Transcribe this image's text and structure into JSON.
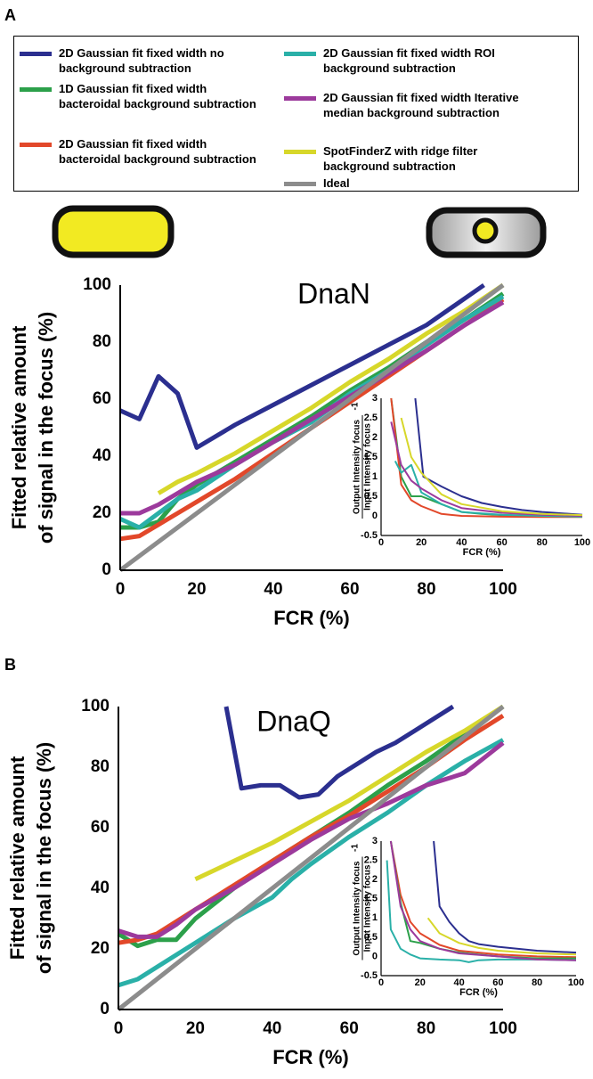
{
  "panel_labels": [
    "A",
    "B"
  ],
  "chart_data": [
    {
      "type": "line",
      "title": "DnaN",
      "xlabel": "FCR (%)",
      "ylabel": [
        "Fitted relative amount",
        "of signal in the focus (%)"
      ],
      "xlim": [
        0,
        100
      ],
      "ylim": [
        0,
        100
      ],
      "xticks": [
        0,
        20,
        40,
        60,
        80,
        100
      ],
      "yticks": [
        0,
        20,
        40,
        60,
        80,
        100
      ],
      "grid": false,
      "series": [
        {
          "name": "2D Gaussian fit fixed width no background subtraction",
          "color": "#2b2f8f",
          "x": [
            0,
            5,
            10,
            15,
            20,
            30,
            40,
            50,
            60,
            70,
            80,
            95
          ],
          "values": [
            56,
            53,
            68,
            62,
            43,
            51,
            58,
            65,
            72,
            79,
            86,
            100
          ]
        },
        {
          "name": "1D Gaussian fit fixed width bacteroidal background subtraction",
          "color": "#2ca04a",
          "x": [
            0,
            5,
            10,
            15,
            20,
            30,
            40,
            50,
            60,
            70,
            80,
            90,
            100
          ],
          "values": [
            15,
            15,
            17,
            25,
            30,
            38,
            46,
            54,
            63,
            71,
            80,
            88,
            97
          ]
        },
        {
          "name": "2D Gaussian fit fixed width bacteroidal background subtraction",
          "color": "#e2482a",
          "x": [
            0,
            5,
            10,
            15,
            20,
            30,
            40,
            50,
            60,
            70,
            80,
            90,
            100
          ],
          "values": [
            11,
            12,
            16,
            20,
            24,
            32,
            41,
            50,
            59,
            68,
            77,
            86,
            95
          ]
        },
        {
          "name": "2D Gaussian fit fixed width ROI background subtraction",
          "color": "#2ab0a8",
          "x": [
            0,
            5,
            10,
            15,
            20,
            30,
            40,
            50,
            60,
            70,
            80,
            90,
            100
          ],
          "values": [
            18,
            15,
            20,
            25,
            28,
            37,
            45,
            52,
            62,
            70,
            79,
            88,
            96
          ]
        },
        {
          "name": "2D Gaussian fit fixed width Iterative median background subtraction",
          "color": "#9c3a9c",
          "x": [
            0,
            5,
            10,
            15,
            20,
            30,
            40,
            50,
            60,
            70,
            80,
            90,
            100
          ],
          "values": [
            20,
            20,
            23,
            27,
            31,
            37,
            45,
            53,
            61,
            69,
            77,
            86,
            94
          ]
        },
        {
          "name": "SpotFinderZ with ridge filter background subtraction",
          "color": "#d7d72a",
          "x": [
            10,
            15,
            20,
            30,
            40,
            50,
            60,
            70,
            80,
            90,
            100
          ],
          "values": [
            27,
            31,
            34,
            41,
            49,
            57,
            66,
            74,
            83,
            91,
            100
          ]
        },
        {
          "name": "Ideal",
          "color": "#8c8c8c",
          "x": [
            0,
            100
          ],
          "values": [
            0,
            100
          ]
        }
      ]
    },
    {
      "type": "line",
      "xlabel": "FCR (%)",
      "ylabel_top": "Output Intensity focus",
      "ylabel_bottom": "Input Intensity focus",
      "ylabel_exp": "-1",
      "xlim": [
        0,
        100
      ],
      "ylim": [
        -0.5,
        3
      ],
      "xticks": [
        0,
        20,
        40,
        60,
        80,
        100
      ],
      "yticks": [
        -0.5,
        0,
        0.5,
        1,
        1.5,
        2,
        2.5,
        3
      ],
      "series": [
        {
          "color": "#2b2f8f",
          "x": [
            17,
            21,
            30,
            40,
            50,
            60,
            70,
            80,
            100
          ],
          "values": [
            3,
            1,
            0.75,
            0.5,
            0.33,
            0.23,
            0.15,
            0.1,
            0.03
          ]
        },
        {
          "color": "#2ca04a",
          "x": [
            5,
            10,
            15,
            20,
            30,
            40,
            50,
            60,
            80,
            100
          ],
          "values": [
            3,
            1,
            0.5,
            0.5,
            0.3,
            0.1,
            0.05,
            0.02,
            0,
            -0.02
          ]
        },
        {
          "color": "#e2482a",
          "x": [
            5,
            10,
            15,
            20,
            30,
            40,
            60,
            80,
            100
          ],
          "values": [
            3,
            0.8,
            0.4,
            0.25,
            0.05,
            0,
            -0.02,
            -0.03,
            -0.03
          ]
        },
        {
          "color": "#2ab0a8",
          "x": [
            7,
            10,
            15,
            20,
            30,
            40,
            60,
            80,
            100
          ],
          "values": [
            1.4,
            1.1,
            1.3,
            0.6,
            0.3,
            0.1,
            0.03,
            0,
            -0.02
          ]
        },
        {
          "color": "#9c3a9c",
          "x": [
            5,
            10,
            15,
            20,
            30,
            40,
            60,
            80,
            100
          ],
          "values": [
            2.4,
            1.3,
            0.9,
            0.7,
            0.4,
            0.2,
            0.08,
            0.03,
            0
          ]
        },
        {
          "color": "#d7d72a",
          "x": [
            10,
            15,
            20,
            30,
            40,
            60,
            80,
            100
          ],
          "values": [
            2.5,
            1.5,
            1.1,
            0.55,
            0.3,
            0.12,
            0.05,
            0.02
          ]
        }
      ]
    },
    {
      "type": "line",
      "title": "DnaQ",
      "xlabel": "FCR (%)",
      "ylabel": [
        "Fitted relative amount",
        "of signal in the focus (%)"
      ],
      "xlim": [
        0,
        100
      ],
      "ylim": [
        0,
        100
      ],
      "xticks": [
        0,
        20,
        40,
        60,
        80,
        100
      ],
      "yticks": [
        0,
        20,
        40,
        60,
        80,
        100
      ],
      "grid": false,
      "series": [
        {
          "color": "#2b2f8f",
          "x": [
            28,
            32,
            37,
            42,
            47,
            52,
            57,
            62,
            67,
            72,
            77,
            82,
            87
          ],
          "values": [
            100,
            73,
            74,
            74,
            70,
            71,
            77,
            81,
            85,
            88,
            92,
            96,
            100
          ]
        },
        {
          "color": "#2ca04a",
          "x": [
            0,
            5,
            10,
            15,
            20,
            25,
            30,
            40,
            50,
            60,
            70,
            80,
            90,
            100
          ],
          "values": [
            25,
            21,
            23,
            23,
            30,
            35,
            40,
            49,
            57,
            65,
            74,
            82,
            91,
            100
          ]
        },
        {
          "color": "#e2482a",
          "x": [
            0,
            5,
            10,
            15,
            20,
            25,
            30,
            40,
            50,
            60,
            70,
            80,
            90,
            100
          ],
          "values": [
            22,
            23,
            25,
            29,
            33,
            37,
            41,
            49,
            57,
            64,
            72,
            80,
            89,
            97
          ]
        },
        {
          "color": "#2ab0a8",
          "x": [
            0,
            5,
            10,
            20,
            30,
            40,
            45,
            50,
            60,
            70,
            80,
            90,
            100
          ],
          "values": [
            8,
            10,
            14,
            22,
            30,
            37,
            43,
            48,
            57,
            65,
            74,
            82,
            89
          ]
        },
        {
          "color": "#9c3a9c",
          "x": [
            0,
            5,
            10,
            15,
            20,
            30,
            40,
            50,
            60,
            70,
            80,
            90,
            100
          ],
          "values": [
            26,
            24,
            24,
            28,
            33,
            40,
            48,
            56,
            63,
            68,
            74,
            78,
            88
          ]
        },
        {
          "color": "#d7d72a",
          "x": [
            20,
            25,
            30,
            40,
            50,
            60,
            70,
            80,
            90,
            100
          ],
          "values": [
            43,
            46,
            49,
            55,
            62,
            69,
            77,
            85,
            92,
            100
          ]
        },
        {
          "color": "#8c8c8c",
          "x": [
            0,
            100
          ],
          "values": [
            0,
            100
          ]
        }
      ]
    },
    {
      "type": "line",
      "xlabel": "FCR (%)",
      "ylabel_top": "Output Intensity focus",
      "ylabel_bottom": "Input Intensity focus",
      "ylabel_exp": "-1",
      "xlim": [
        0,
        100
      ],
      "ylim": [
        -0.5,
        3
      ],
      "xticks": [
        0,
        20,
        40,
        60,
        80,
        100
      ],
      "yticks": [
        -0.5,
        0,
        0.5,
        1,
        1.5,
        2,
        2.5,
        3
      ],
      "series": [
        {
          "color": "#2b2f8f",
          "x": [
            27,
            30,
            35,
            40,
            45,
            50,
            60,
            80,
            100
          ],
          "values": [
            3,
            1.3,
            0.9,
            0.6,
            0.4,
            0.32,
            0.25,
            0.15,
            0.1
          ]
        },
        {
          "color": "#e2482a",
          "x": [
            5,
            10,
            15,
            20,
            30,
            40,
            60,
            80,
            100
          ],
          "values": [
            3,
            1.6,
            0.9,
            0.6,
            0.3,
            0.15,
            0.05,
            0,
            -0.02
          ]
        },
        {
          "color": "#2ca04a",
          "x": [
            5,
            10,
            15,
            20,
            30,
            40,
            60,
            80,
            100
          ],
          "values": [
            3,
            1.4,
            0.4,
            0.35,
            0.2,
            0.1,
            0,
            -0.05,
            -0.05
          ]
        },
        {
          "color": "#2ab0a8",
          "x": [
            3,
            5,
            10,
            15,
            20,
            30,
            40,
            45,
            50,
            60,
            80,
            100
          ],
          "values": [
            2.5,
            0.7,
            0.2,
            0.05,
            -0.05,
            -0.08,
            -0.1,
            -0.15,
            -0.1,
            -0.08,
            -0.08,
            -0.1
          ]
        },
        {
          "color": "#9c3a9c",
          "x": [
            5,
            10,
            15,
            20,
            30,
            40,
            60,
            80,
            100
          ],
          "values": [
            3,
            1.3,
            0.7,
            0.4,
            0.2,
            0.08,
            0,
            -0.08,
            -0.1
          ]
        },
        {
          "color": "#d7d72a",
          "x": [
            24,
            30,
            40,
            50,
            60,
            80,
            100
          ],
          "values": [
            1,
            0.6,
            0.35,
            0.22,
            0.15,
            0.08,
            0.05
          ]
        }
      ]
    }
  ]
}
